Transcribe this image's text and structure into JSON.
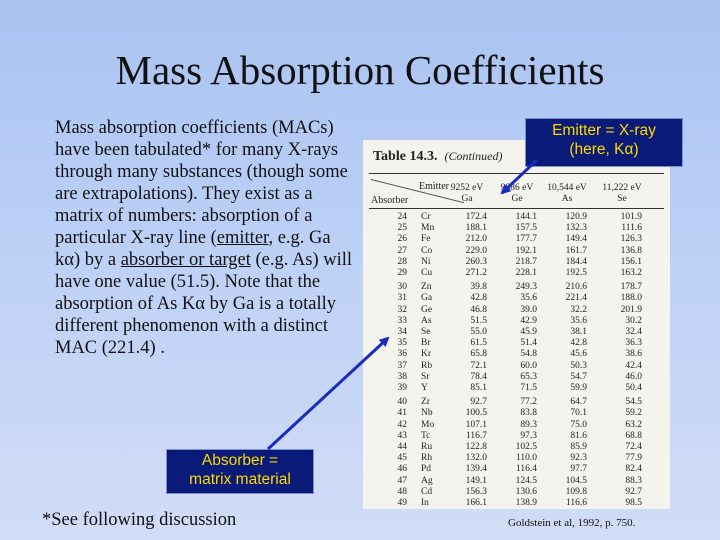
{
  "slide": {
    "title": "Mass Absorption Coefficients",
    "body": {
      "p1": "Mass absorption coefficients (MACs) have been tabulated* for many X-rays through many substances (though some are extrapolations). They exist as a matrix of numbers: absorption of a particular X-ray line (",
      "emitter_word": "emitter",
      "p2": ", e.g. Ga kα) by a ",
      "absorber_word": "absorber or target",
      "p3": " (e.g. As) will have one value (51.5). Note that the absorption of As Kα by Ga is a totally different phenomenon with a distinct MAC (221.4) ."
    },
    "footnote": "*See following discussion",
    "citation": "Goldstein et al, 1992, p. 750."
  },
  "callouts": {
    "emitter_line1": "Emitter = X-ray",
    "emitter_line2": "(here, Kα)",
    "absorber_line1": "Absorber =",
    "absorber_line2": "matrix material"
  },
  "colors": {
    "callout_bg": "#0a1a78",
    "callout_text": "#ffd800",
    "arrow": "#1a2bbf"
  },
  "table": {
    "caption_bold": "Table 14.3.",
    "caption_italic": "(Continued)",
    "emitter_label": "Emitter",
    "absorber_label": "Absorber",
    "columns": [
      {
        "energy": "9252 eV",
        "element": "Ga"
      },
      {
        "energy": "9886 eV",
        "element": "Ge"
      },
      {
        "energy": "10,544 eV",
        "element": "As"
      },
      {
        "energy": "11,222 eV",
        "element": "Se"
      }
    ],
    "rows": [
      {
        "z": "24",
        "el": "Cr",
        "v": [
          "172.4",
          "144.1",
          "120.9",
          "101.9"
        ]
      },
      {
        "z": "25",
        "el": "Mn",
        "v": [
          "188.1",
          "157.5",
          "132.3",
          "111.6"
        ]
      },
      {
        "z": "26",
        "el": "Fe",
        "v": [
          "212.0",
          "177.7",
          "149.4",
          "126.3"
        ]
      },
      {
        "z": "27",
        "el": "Co",
        "v": [
          "229.0",
          "192.1",
          "161.7",
          "136.8"
        ]
      },
      {
        "z": "28",
        "el": "Ni",
        "v": [
          "260.3",
          "218.7",
          "184.4",
          "156.1"
        ]
      },
      {
        "z": "29",
        "el": "Cu",
        "v": [
          "271.2",
          "228.1",
          "192.5",
          "163.2"
        ]
      },
      {
        "z": "30",
        "el": "Zn",
        "v": [
          "39.8",
          "249.3",
          "210.6",
          "178.7"
        ]
      },
      {
        "z": "31",
        "el": "Ga",
        "v": [
          "42.8",
          "35.6",
          "221.4",
          "188.0"
        ]
      },
      {
        "z": "32",
        "el": "Ge",
        "v": [
          "46.8",
          "39.0",
          "32.2",
          "201.9"
        ]
      },
      {
        "z": "33",
        "el": "As",
        "v": [
          "51.5",
          "42.9",
          "35.6",
          "30.2"
        ]
      },
      {
        "z": "34",
        "el": "Se",
        "v": [
          "55.0",
          "45.9",
          "38.1",
          "32.4"
        ]
      },
      {
        "z": "35",
        "el": "Br",
        "v": [
          "61.5",
          "51.4",
          "42.8",
          "36.3"
        ]
      },
      {
        "z": "36",
        "el": "Kr",
        "v": [
          "65.8",
          "54.8",
          "45.6",
          "38.6"
        ]
      },
      {
        "z": "37",
        "el": "Rb",
        "v": [
          "72.1",
          "60.0",
          "50.3",
          "42.4"
        ]
      },
      {
        "z": "38",
        "el": "Sr",
        "v": [
          "78.4",
          "65.3",
          "54.7",
          "46.0"
        ]
      },
      {
        "z": "39",
        "el": "Y",
        "v": [
          "85.1",
          "71.5",
          "59.9",
          "50.4"
        ]
      },
      {
        "z": "40",
        "el": "Zr",
        "v": [
          "92.7",
          "77.2",
          "64.7",
          "54.5"
        ]
      },
      {
        "z": "41",
        "el": "Nb",
        "v": [
          "100.5",
          "83.8",
          "70.1",
          "59.2"
        ]
      },
      {
        "z": "42",
        "el": "Mo",
        "v": [
          "107.1",
          "89.3",
          "75.0",
          "63.2"
        ]
      },
      {
        "z": "43",
        "el": "Tc",
        "v": [
          "116.7",
          "97.3",
          "81.6",
          "68.8"
        ]
      },
      {
        "z": "44",
        "el": "Ru",
        "v": [
          "122.8",
          "102.5",
          "85.9",
          "72.4"
        ]
      },
      {
        "z": "45",
        "el": "Rh",
        "v": [
          "132.0",
          "110.0",
          "92.3",
          "77.9"
        ]
      },
      {
        "z": "46",
        "el": "Pd",
        "v": [
          "139.4",
          "116.4",
          "97.7",
          "82.4"
        ]
      },
      {
        "z": "47",
        "el": "Ag",
        "v": [
          "149.1",
          "124.5",
          "104.5",
          "88.3"
        ]
      },
      {
        "z": "48",
        "el": "Cd",
        "v": [
          "156.3",
          "130.6",
          "109.8",
          "92.7"
        ]
      },
      {
        "z": "49",
        "el": "In",
        "v": [
          "166.1",
          "138.9",
          "116.6",
          "98.5"
        ]
      }
    ]
  }
}
